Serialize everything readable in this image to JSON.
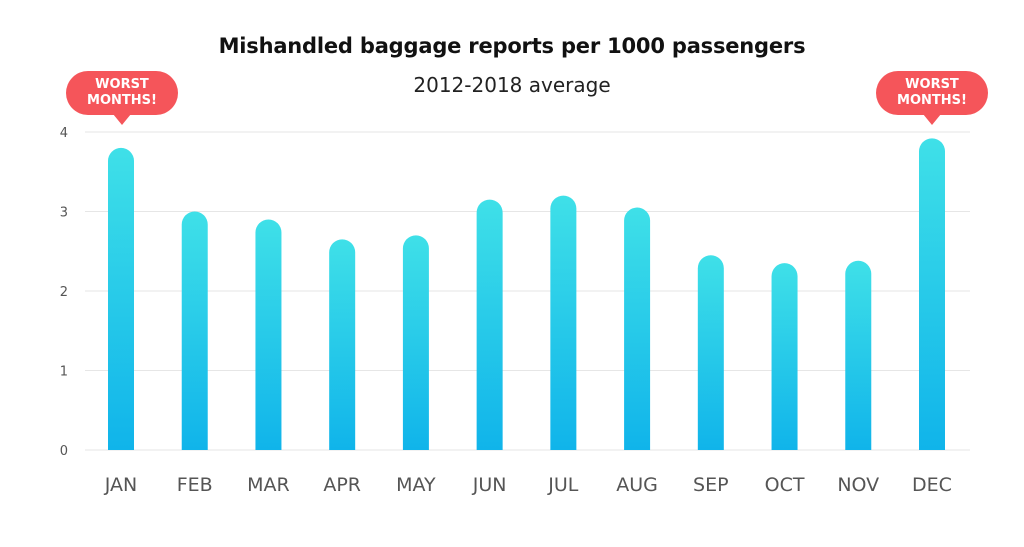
{
  "chart_data": {
    "type": "bar",
    "title": "Mishandled baggage reports per 1000 passengers",
    "subtitle": "2012-2018 average",
    "categories": [
      "JAN",
      "FEB",
      "MAR",
      "APR",
      "MAY",
      "JUN",
      "JUL",
      "AUG",
      "SEP",
      "OCT",
      "NOV",
      "DEC"
    ],
    "values": [
      3.8,
      3.0,
      2.9,
      2.65,
      2.7,
      3.15,
      3.2,
      3.05,
      2.45,
      2.35,
      2.38,
      3.92
    ],
    "ylim": [
      0,
      4
    ],
    "yticks": [
      "0",
      "1",
      "2",
      "3",
      "4"
    ],
    "grid": true,
    "bar_color_top": "#3fe0e8",
    "bar_color_bottom": "#10b4ea",
    "gridline_color": "#e6e6e6",
    "tick_color": "#555555"
  },
  "callouts": [
    {
      "line1": "WORST",
      "line2": "MONTHS!"
    },
    {
      "line1": "WORST",
      "line2": "MONTHS!"
    }
  ],
  "callout_color": "#f5555a"
}
